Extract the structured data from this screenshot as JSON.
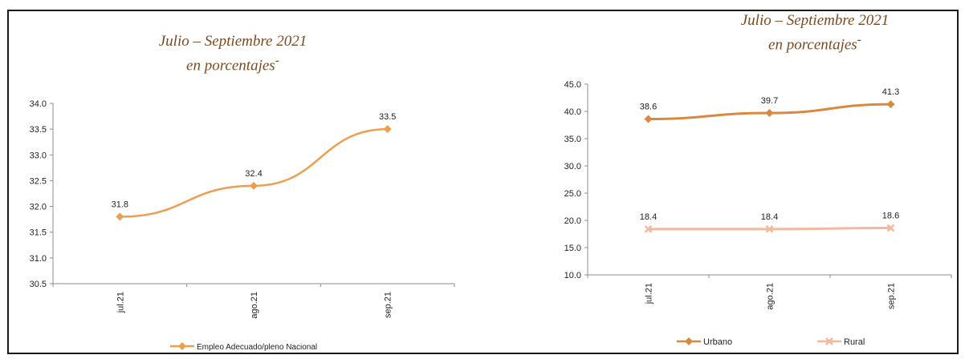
{
  "chart_data": [
    {
      "type": "line",
      "title": "Julio – Septiembre 2021",
      "subtitle": "en porcentajes",
      "categories": [
        "jul.21",
        "ago.21",
        "sep.21"
      ],
      "ylim": [
        30.5,
        34.0
      ],
      "yticks": [
        "30.5",
        "31.0",
        "31.5",
        "32.0",
        "32.5",
        "33.0",
        "33.5",
        "34.0"
      ],
      "grid": false,
      "legend_position": "bottom",
      "series": [
        {
          "name": "Empleo Adecuado/pleno Nacional",
          "values": [
            31.8,
            32.4,
            33.5
          ],
          "labels": [
            "31.8",
            "32.4",
            "33.5"
          ],
          "color": "#ED9E4F",
          "marker": "diamond"
        }
      ]
    },
    {
      "type": "line",
      "title": "Julio – Septiembre 2021",
      "subtitle": "en porcentajes",
      "categories": [
        "jul.21",
        "ago.21",
        "sep.21"
      ],
      "ylim": [
        10.0,
        45.0
      ],
      "yticks": [
        "10.0",
        "15.0",
        "20.0",
        "25.0",
        "30.0",
        "35.0",
        "40.0",
        "45.0"
      ],
      "grid": false,
      "legend_position": "bottom",
      "series": [
        {
          "name": "Urbano",
          "values": [
            38.6,
            39.7,
            41.3
          ],
          "labels": [
            "38.6",
            "39.7",
            "41.3"
          ],
          "color": "#D9883F",
          "marker": "diamond"
        },
        {
          "name": "Rural",
          "values": [
            18.4,
            18.4,
            18.6
          ],
          "labels": [
            "18.4",
            "18.4",
            "18.6"
          ],
          "color": "#F2B9A0",
          "marker": "x"
        }
      ]
    }
  ]
}
